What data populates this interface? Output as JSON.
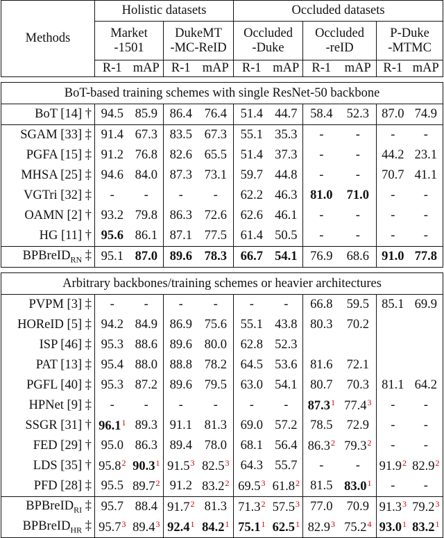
{
  "header": {
    "methods": "Methods",
    "holistic": "Holistic datasets",
    "occluded": "Occluded datasets",
    "datasets": [
      {
        "line1": "Market",
        "line2": "-1501"
      },
      {
        "line1": "DukeMT",
        "line2": "-MC-ReID"
      },
      {
        "line1": "Occluded",
        "line2": "-Duke"
      },
      {
        "line1": "Occluded",
        "line2": "-reID"
      },
      {
        "line1": "P-Duke",
        "line2": "-MTMC"
      }
    ],
    "r1": "R-1",
    "map": "mAP"
  },
  "section1": {
    "title": "BoT-based training schemes with single ResNet-50 backbone",
    "rows": [
      {
        "method": "BoT [14] †",
        "cells": [
          {
            "v": "94.5"
          },
          {
            "v": "85.9"
          },
          {
            "v": "86.4"
          },
          {
            "v": "76.4"
          },
          {
            "v": "51.4"
          },
          {
            "v": "44.7"
          },
          {
            "v": "58.4"
          },
          {
            "v": "52.3"
          },
          {
            "v": "87.0"
          },
          {
            "v": "74.9"
          }
        ]
      },
      {
        "method": "SGAM [33] ‡",
        "cells": [
          {
            "v": "91.4"
          },
          {
            "v": "67.3"
          },
          {
            "v": "83.5"
          },
          {
            "v": "67.3"
          },
          {
            "v": "55.1"
          },
          {
            "v": "35.3"
          },
          {
            "v": "-"
          },
          {
            "v": "-"
          },
          {
            "v": "-"
          },
          {
            "v": "-"
          }
        ]
      },
      {
        "method": "PGFA [15] ‡",
        "cells": [
          {
            "v": "91.2"
          },
          {
            "v": "76.8"
          },
          {
            "v": "82.6"
          },
          {
            "v": "65.5"
          },
          {
            "v": "51.4"
          },
          {
            "v": "37.3"
          },
          {
            "v": "-"
          },
          {
            "v": "-"
          },
          {
            "v": "44.2"
          },
          {
            "v": "23.1"
          }
        ]
      },
      {
        "method": "MHSA [25] ‡",
        "cells": [
          {
            "v": "94.6"
          },
          {
            "v": "84.0"
          },
          {
            "v": "87.3"
          },
          {
            "v": "73.1"
          },
          {
            "v": "59.7"
          },
          {
            "v": "44.8"
          },
          {
            "v": "-"
          },
          {
            "v": "-"
          },
          {
            "v": "70.7"
          },
          {
            "v": "41.1"
          }
        ]
      },
      {
        "method": "VGTri [32] ‡",
        "cells": [
          {
            "v": "-"
          },
          {
            "v": "-"
          },
          {
            "v": "-"
          },
          {
            "v": "-"
          },
          {
            "v": "62.2"
          },
          {
            "v": "46.3"
          },
          {
            "v": "81.0",
            "b": true
          },
          {
            "v": "71.0",
            "b": true
          },
          {
            "v": "-"
          },
          {
            "v": "-"
          }
        ]
      },
      {
        "method": "OAMN [2] †",
        "cells": [
          {
            "v": "93.2"
          },
          {
            "v": "79.8"
          },
          {
            "v": "86.3"
          },
          {
            "v": "72.6"
          },
          {
            "v": "62.6"
          },
          {
            "v": "46.1"
          },
          {
            "v": "-"
          },
          {
            "v": "-"
          },
          {
            "v": "-"
          },
          {
            "v": "-"
          }
        ]
      },
      {
        "method": "HG [11] †",
        "cells": [
          {
            "v": "95.6",
            "b": true
          },
          {
            "v": "86.1"
          },
          {
            "v": "87.1"
          },
          {
            "v": "77.5"
          },
          {
            "v": "61.4"
          },
          {
            "v": "50.5"
          },
          {
            "v": "-"
          },
          {
            "v": "-"
          },
          {
            "v": "-"
          },
          {
            "v": "-"
          }
        ]
      }
    ],
    "ours": {
      "name": "BPBreID",
      "sub": "RN",
      "mark": " ‡",
      "cells": [
        {
          "v": "95.1"
        },
        {
          "v": "87.0",
          "b": true
        },
        {
          "v": "89.6",
          "b": true
        },
        {
          "v": "78.3",
          "b": true
        },
        {
          "v": "66.7",
          "b": true
        },
        {
          "v": "54.1",
          "b": true
        },
        {
          "v": "76.9"
        },
        {
          "v": "68.6"
        },
        {
          "v": "91.0",
          "b": true
        },
        {
          "v": "77.8",
          "b": true
        }
      ]
    }
  },
  "section2": {
    "title": "Arbitrary backbones/training schemes or heavier architectures",
    "rows": [
      {
        "method": "PVPM [3] ‡",
        "cells": [
          {
            "v": "-"
          },
          {
            "v": "-"
          },
          {
            "v": "-"
          },
          {
            "v": "-"
          },
          {
            "v": "-"
          },
          {
            "v": "-"
          },
          {
            "v": "66.8"
          },
          {
            "v": "59.5"
          },
          {
            "v": "85.1"
          },
          {
            "v": "69.9"
          }
        ]
      },
      {
        "method": "HOReID [5] ‡",
        "cells": [
          {
            "v": "94.2"
          },
          {
            "v": "84.9"
          },
          {
            "v": "86.9"
          },
          {
            "v": "75.6"
          },
          {
            "v": "55.1"
          },
          {
            "v": "43.8"
          },
          {
            "v": "80.3"
          },
          {
            "v": "70.2"
          },
          {
            "v": ""
          },
          {
            "v": ""
          }
        ]
      },
      {
        "method": "ISP [46] ‡",
        "cells": [
          {
            "v": "95.3"
          },
          {
            "v": "88.6"
          },
          {
            "v": "89.6"
          },
          {
            "v": "80.0"
          },
          {
            "v": "62.8"
          },
          {
            "v": "52.3"
          },
          {
            "v": ""
          },
          {
            "v": ""
          },
          {
            "v": ""
          },
          {
            "v": ""
          }
        ]
      },
      {
        "method": "PAT [13] ‡",
        "cells": [
          {
            "v": "95.4"
          },
          {
            "v": "88.0"
          },
          {
            "v": "88.8"
          },
          {
            "v": "78.2"
          },
          {
            "v": "64.5"
          },
          {
            "v": "53.6"
          },
          {
            "v": "81.6"
          },
          {
            "v": "72.1"
          },
          {
            "v": ""
          },
          {
            "v": ""
          }
        ]
      },
      {
        "method": "PGFL [40] ‡",
        "cells": [
          {
            "v": "95.3"
          },
          {
            "v": "87.2"
          },
          {
            "v": "89.6"
          },
          {
            "v": "79.5"
          },
          {
            "v": "63.0"
          },
          {
            "v": "54.1"
          },
          {
            "v": "80.7"
          },
          {
            "v": "70.3"
          },
          {
            "v": "81.1"
          },
          {
            "v": "64.2"
          }
        ]
      },
      {
        "method": "HPNet [9] ‡",
        "cells": [
          {
            "v": "-"
          },
          {
            "v": "-"
          },
          {
            "v": "-"
          },
          {
            "v": "-"
          },
          {
            "v": "-"
          },
          {
            "v": "-"
          },
          {
            "v": "87.3",
            "b": true,
            "s": "1"
          },
          {
            "v": "77.4",
            "s": "3"
          },
          {
            "v": "-"
          },
          {
            "v": "-"
          }
        ]
      },
      {
        "method": "SSGR [31] †",
        "cells": [
          {
            "v": "96.1",
            "b": true,
            "s": "1"
          },
          {
            "v": "89.3"
          },
          {
            "v": "91.1"
          },
          {
            "v": "81.3"
          },
          {
            "v": "69.0"
          },
          {
            "v": "57.2"
          },
          {
            "v": "78.5"
          },
          {
            "v": "72.9"
          },
          {
            "v": "-"
          },
          {
            "v": "-"
          }
        ]
      },
      {
        "method": "FED [29] †",
        "cells": [
          {
            "v": "95.0"
          },
          {
            "v": "86.3"
          },
          {
            "v": "89.4"
          },
          {
            "v": "78.0"
          },
          {
            "v": "68.1"
          },
          {
            "v": "56.4"
          },
          {
            "v": "86.3",
            "s": "2"
          },
          {
            "v": "79.3",
            "s": "2"
          },
          {
            "v": "-"
          },
          {
            "v": "-"
          }
        ]
      },
      {
        "method": "LDS [35] †",
        "cells": [
          {
            "v": "95.8",
            "s": "2"
          },
          {
            "v": "90.3",
            "b": true,
            "s": "1"
          },
          {
            "v": "91.5",
            "s": "3"
          },
          {
            "v": "82.5",
            "s": "3"
          },
          {
            "v": "64.3"
          },
          {
            "v": "55.7"
          },
          {
            "v": "-"
          },
          {
            "v": "-"
          },
          {
            "v": "91.9",
            "s": "2"
          },
          {
            "v": "82.9",
            "s": "2"
          }
        ]
      },
      {
        "method": "PFD [28] ‡",
        "cells": [
          {
            "v": "95.5"
          },
          {
            "v": "89.7",
            "s": "2"
          },
          {
            "v": "91.2"
          },
          {
            "v": "83.2",
            "s": "2"
          },
          {
            "v": "69.5",
            "s": "3"
          },
          {
            "v": "61.8",
            "s": "2"
          },
          {
            "v": "81.5"
          },
          {
            "v": "83.0",
            "b": true,
            "s": "1"
          },
          {
            "v": "-"
          },
          {
            "v": "-"
          }
        ]
      }
    ],
    "ours": [
      {
        "name": "BPBreID",
        "sub": "RI",
        "mark": " ‡",
        "cells": [
          {
            "v": "95.7"
          },
          {
            "v": "88.4"
          },
          {
            "v": "91.7",
            "s": "2"
          },
          {
            "v": "81.3"
          },
          {
            "v": "71.3",
            "s": "2"
          },
          {
            "v": "57.5",
            "s": "3"
          },
          {
            "v": "77.0"
          },
          {
            "v": "70.9"
          },
          {
            "v": "91.3",
            "s": "3"
          },
          {
            "v": "79.2",
            "s": "3"
          }
        ]
      },
      {
        "name": "BPBreID",
        "sub": "HR",
        "mark": " ‡",
        "cells": [
          {
            "v": "95.7",
            "s": "3"
          },
          {
            "v": "89.4",
            "s": "3"
          },
          {
            "v": "92.4",
            "b": true,
            "s": "1"
          },
          {
            "v": "84.2",
            "b": true,
            "s": "1"
          },
          {
            "v": "75.1",
            "b": true,
            "s": "1"
          },
          {
            "v": "62.5",
            "b": true,
            "s": "1"
          },
          {
            "v": "82.9",
            "s": "3"
          },
          {
            "v": "75.2",
            "s": "4"
          },
          {
            "v": "93.0",
            "b": true,
            "s": "1"
          },
          {
            "v": "83.2",
            "b": true,
            "s": "1"
          }
        ]
      }
    ]
  }
}
